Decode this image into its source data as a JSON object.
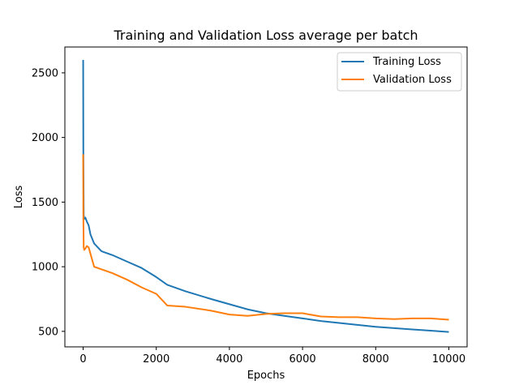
{
  "chart_data": {
    "type": "line",
    "title": "Training and Validation Loss average per batch",
    "xlabel": "Epochs",
    "ylabel": "Loss",
    "xlim": [
      -500,
      10500
    ],
    "ylim": [
      380,
      2700
    ],
    "xticks": [
      0,
      2000,
      4000,
      6000,
      8000,
      10000
    ],
    "yticks": [
      500,
      1000,
      1500,
      2000,
      2500
    ],
    "legend_position": "top-right",
    "series": [
      {
        "name": "Training Loss",
        "color": "#1f77b4",
        "x": [
          0,
          5,
          15,
          30,
          60,
          100,
          150,
          200,
          300,
          500,
          800,
          1200,
          1600,
          2000,
          2300,
          2800,
          3500,
          4000,
          4500,
          5000,
          5500,
          6000,
          6500,
          7000,
          7500,
          8000,
          8500,
          9000,
          9500,
          10000
        ],
        "y": [
          2600,
          1900,
          1400,
          1370,
          1380,
          1350,
          1320,
          1250,
          1180,
          1120,
          1090,
          1040,
          990,
          920,
          860,
          810,
          750,
          710,
          670,
          640,
          620,
          600,
          580,
          565,
          550,
          535,
          525,
          515,
          505,
          495
        ]
      },
      {
        "name": "Validation Loss",
        "color": "#ff7f0e",
        "x": [
          0,
          5,
          15,
          30,
          60,
          100,
          150,
          200,
          300,
          500,
          800,
          1200,
          1600,
          2000,
          2300,
          2800,
          3500,
          4000,
          4500,
          5000,
          5500,
          6000,
          6500,
          7000,
          7500,
          8000,
          8500,
          9000,
          9500,
          10000
        ],
        "y": [
          1870,
          1400,
          1150,
          1130,
          1140,
          1160,
          1150,
          1100,
          1000,
          980,
          950,
          900,
          840,
          790,
          700,
          690,
          660,
          630,
          620,
          635,
          640,
          640,
          615,
          610,
          610,
          600,
          595,
          600,
          600,
          590
        ]
      }
    ]
  }
}
